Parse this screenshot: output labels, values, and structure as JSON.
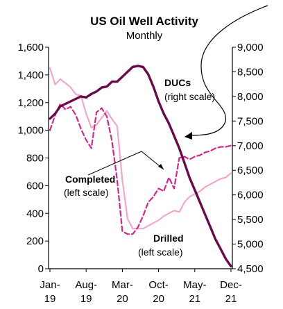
{
  "chart_data": {
    "type": "line",
    "title": "US Oil Well Activity",
    "subtitle": "Monthly",
    "x": [
      "2019-01",
      "2019-02",
      "2019-03",
      "2019-04",
      "2019-05",
      "2019-06",
      "2019-07",
      "2019-08",
      "2019-09",
      "2019-10",
      "2019-11",
      "2019-12",
      "2020-01",
      "2020-02",
      "2020-03",
      "2020-04",
      "2020-05",
      "2020-06",
      "2020-07",
      "2020-08",
      "2020-09",
      "2020-10",
      "2020-11",
      "2020-12",
      "2021-01",
      "2021-02",
      "2021-03",
      "2021-04",
      "2021-05",
      "2021-06",
      "2021-07",
      "2021-08",
      "2021-09",
      "2021-10",
      "2021-11",
      "2021-12"
    ],
    "x_tick_labels": [
      {
        "line1": "Jan-",
        "line2": "19"
      },
      {
        "line1": "Aug-",
        "line2": "19"
      },
      {
        "line1": "Mar-",
        "line2": "20"
      },
      {
        "line1": "Oct-",
        "line2": "20"
      },
      {
        "line1": "May-",
        "line2": "21"
      },
      {
        "line1": "Dec-",
        "line2": "21"
      }
    ],
    "ylim_left": [
      0,
      1600
    ],
    "yticks_left": [
      "0",
      "200",
      "400",
      "600",
      "800",
      "1,000",
      "1,200",
      "1,400",
      "1,600"
    ],
    "ylim_right": [
      4500,
      9000
    ],
    "yticks_right": [
      "4,500",
      "5,000",
      "5,500",
      "6,000",
      "6,500",
      "7,000",
      "7,500",
      "8,000",
      "8,500",
      "9,000"
    ],
    "grid": false,
    "legend": "none",
    "colors": {
      "drilled": "#f2a6cf",
      "completed": "#d6278a",
      "ducs": "#6b0a4a"
    },
    "series": [
      {
        "name": "Drilled",
        "axis": "left",
        "style": "solid-light",
        "values": [
          1450,
          1330,
          1370,
          1340,
          1310,
          1260,
          1250,
          1120,
          1020,
          1040,
          1090,
          1140,
          1080,
          1030,
          640,
          360,
          290,
          290,
          290,
          310,
          330,
          350,
          380,
          400,
          420,
          410,
          480,
          520,
          540,
          560,
          590,
          610,
          630,
          650,
          660,
          690
        ]
      },
      {
        "name": "Completed",
        "axis": "left",
        "style": "dashed",
        "values": [
          1000,
          1110,
          1190,
          1150,
          1170,
          1110,
          1010,
          930,
          870,
          1130,
          1160,
          1100,
          920,
          640,
          270,
          250,
          250,
          300,
          380,
          480,
          520,
          580,
          560,
          660,
          580,
          800,
          810,
          790,
          810,
          820,
          840,
          850,
          870,
          880,
          880,
          890
        ]
      },
      {
        "name": "DUCs",
        "axis": "right",
        "style": "solid-thick",
        "values": [
          7550,
          7650,
          7800,
          7850,
          7900,
          7950,
          8000,
          7980,
          8050,
          8100,
          8180,
          8200,
          8300,
          8300,
          8400,
          8500,
          8600,
          8620,
          8600,
          8450,
          8200,
          7900,
          7650,
          7450,
          7200,
          6950,
          6650,
          6350,
          6100,
          5850,
          5600,
          5350,
          5100,
          4900,
          4700,
          4550
        ]
      }
    ],
    "annotations": [
      {
        "id": "ducs",
        "line1": "DUCs",
        "line2": "(right scale)"
      },
      {
        "id": "completed",
        "line1": "Completed",
        "line2": "(left scale)"
      },
      {
        "id": "drilled",
        "line1": "Drilled",
        "line2": "(left scale)"
      }
    ]
  }
}
